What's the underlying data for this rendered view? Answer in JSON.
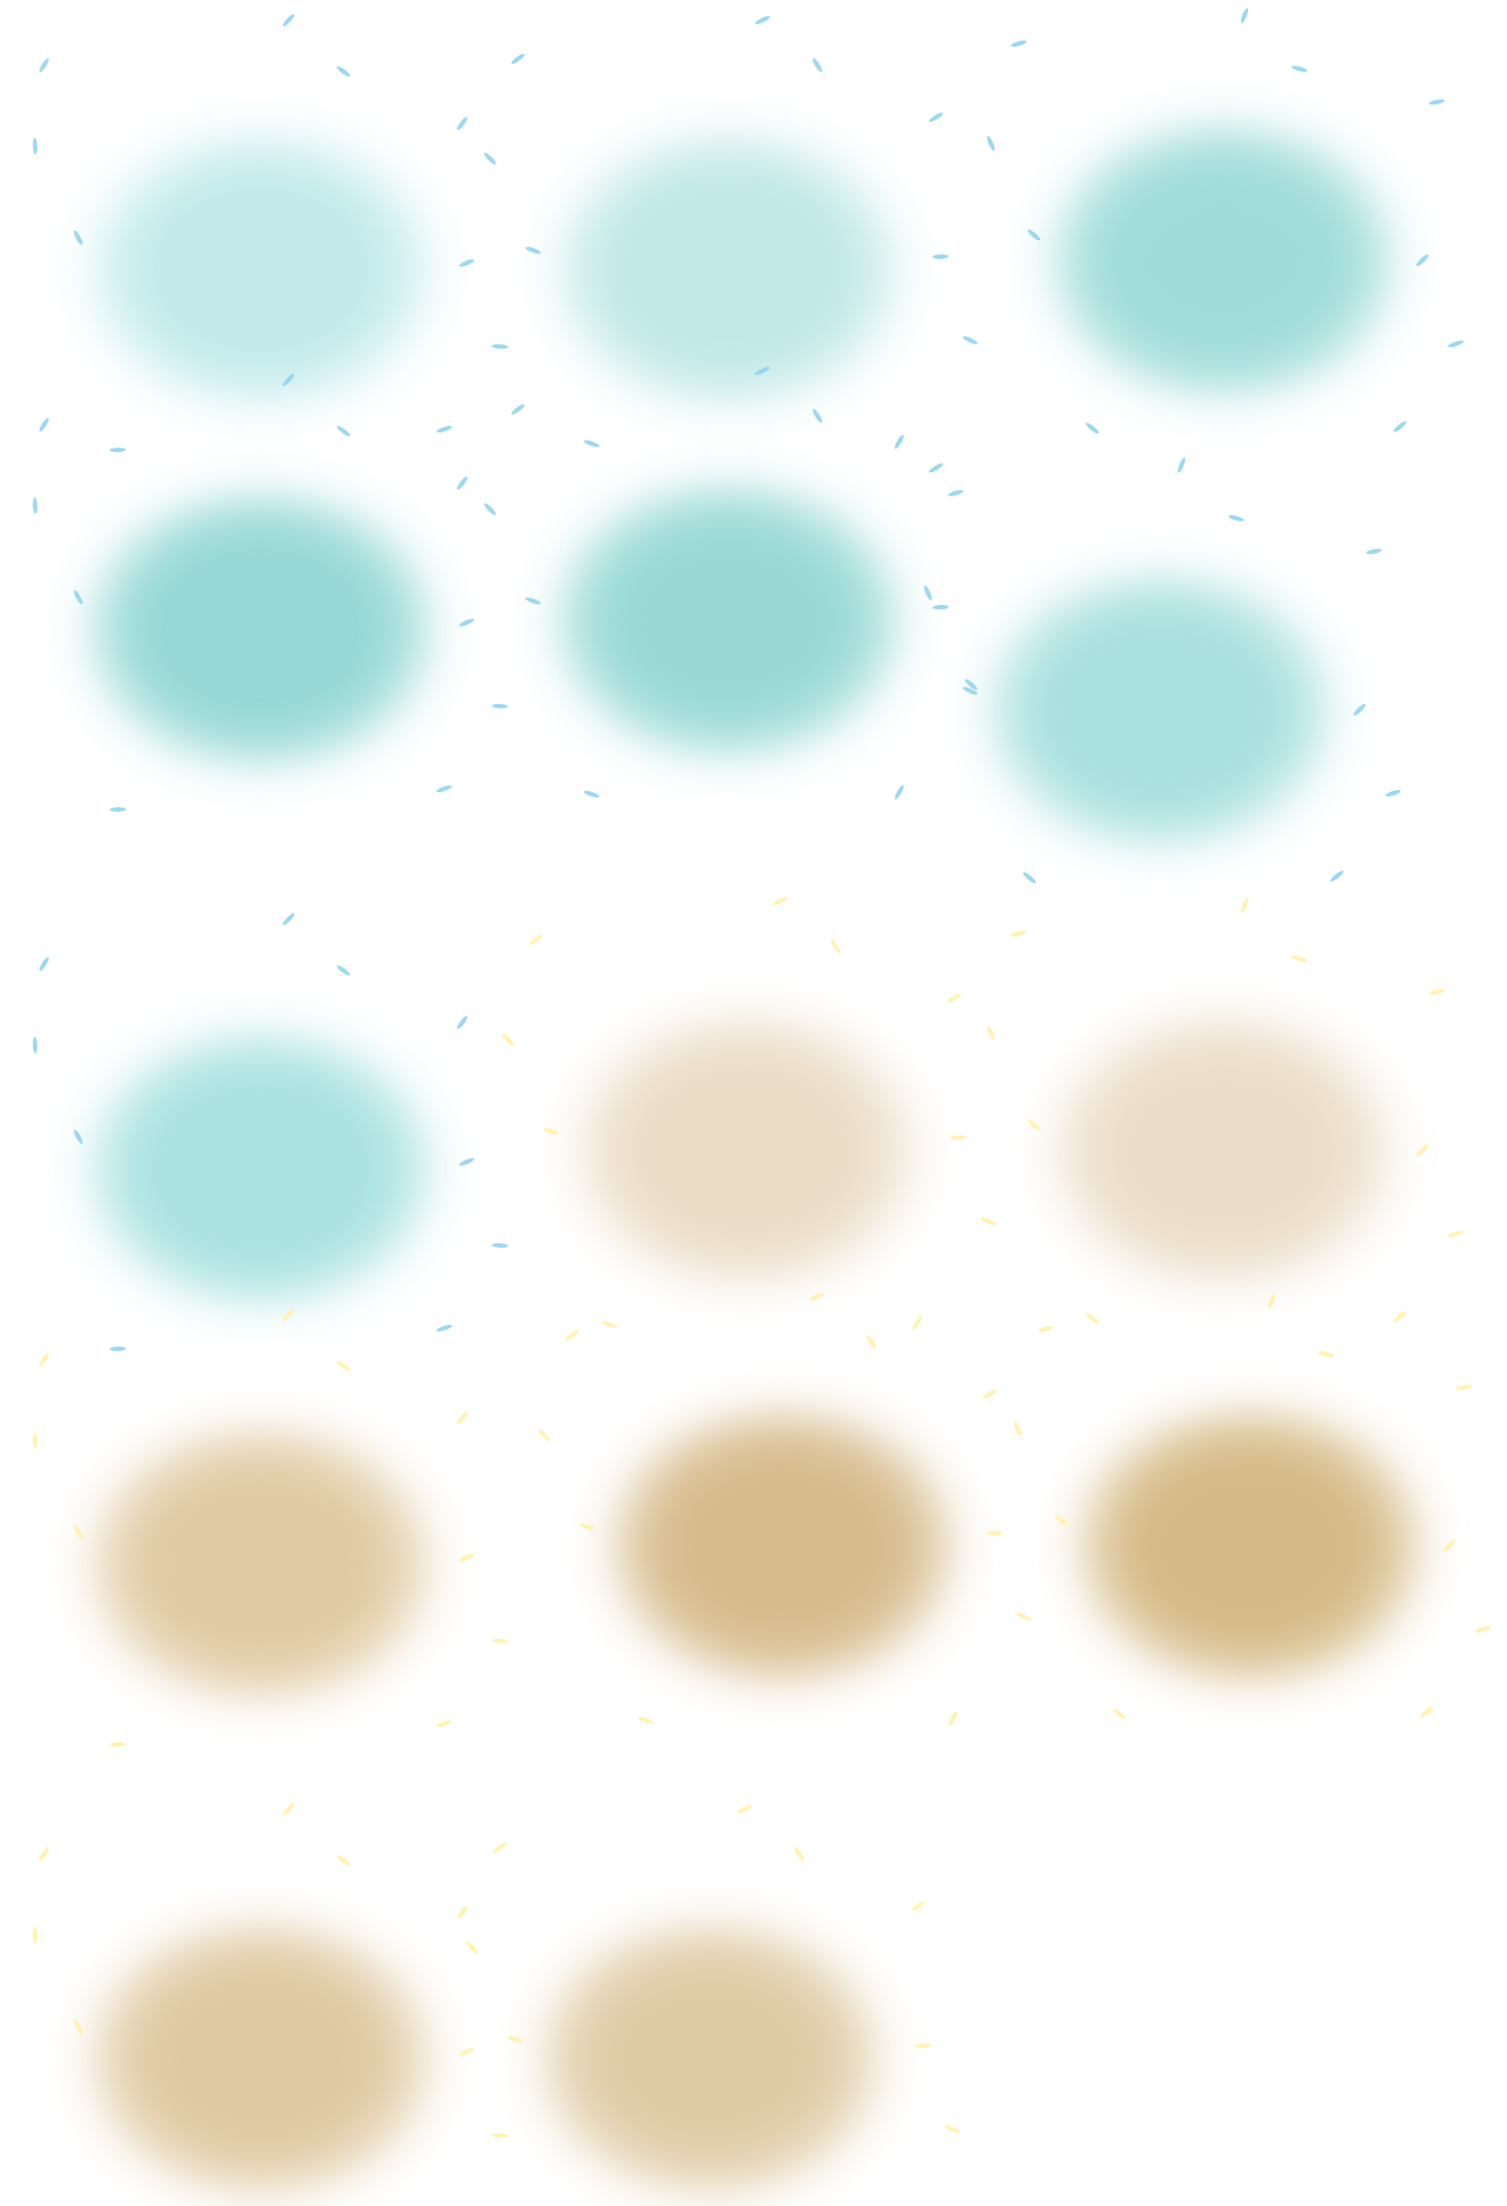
{
  "palette": {
    "background": "#ffffff",
    "blue_fleck": "#8fd3f0",
    "yellow_fleck": "#fff2a6"
  },
  "swatches": [
    {
      "color": "#cdeff0",
      "core": "#c2eaeb",
      "fleck": "blue"
    },
    {
      "color": "#c9ecea",
      "core": "#c0e8e6",
      "fleck": "blue"
    },
    {
      "color": "#a6dfdc",
      "core": "#9fdcd9",
      "fleck": "blue"
    },
    {
      "color": "#9edcd9",
      "core": "#95d8d5",
      "fleck": "blue"
    },
    {
      "color": "#a1ddd9",
      "core": "#98d9d5",
      "fleck": "blue"
    },
    {
      "color": "#b1e4e2",
      "core": "#a8e0de",
      "fleck": "blue"
    },
    {
      "color": "#b2e5e4",
      "core": "#a9e2e0",
      "fleck": "blue"
    },
    {
      "color": "#efe3d0",
      "core": "#ebdcc6",
      "fleck": "yellow"
    },
    {
      "color": "#efe3d1",
      "core": "#ebddc7",
      "fleck": "yellow"
    },
    {
      "color": "#e6d2b0",
      "core": "#e0caa3",
      "fleck": "yellow"
    },
    {
      "color": "#dcc399",
      "core": "#d6bb8c",
      "fleck": "yellow"
    },
    {
      "color": "#dbc394",
      "core": "#d5ba87",
      "fleck": "yellow"
    },
    {
      "color": "#e5d1af",
      "core": "#dfc9a2",
      "fleck": "yellow"
    },
    {
      "color": "#e5d3b2",
      "core": "#dfcba6",
      "fleck": "yellow"
    }
  ]
}
